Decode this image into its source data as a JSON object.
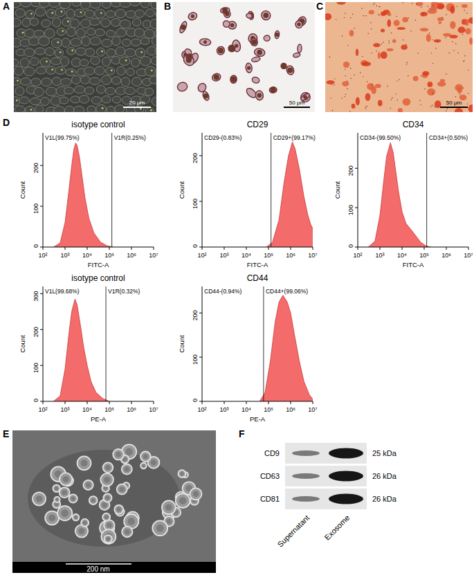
{
  "panels": {
    "labels": [
      "A",
      "B",
      "C",
      "D",
      "E",
      "F"
    ],
    "scale_bars": {
      "A": "20 μm",
      "B": "50 μm",
      "C": "50 μm",
      "E": "200 nm"
    },
    "western_blot": {
      "rows": [
        {
          "name": "CD9",
          "size": "25 kDa"
        },
        {
          "name": "CD63",
          "size": "26 kDa"
        },
        {
          "name": "CD81",
          "size": "26 kDa"
        }
      ],
      "columns": [
        "Supernatant",
        "Exosome"
      ]
    }
  },
  "chart_data": [
    {
      "type": "area",
      "title": "isotype control",
      "x_label": "FITC-A",
      "y_label": "Count",
      "color": "#f46b6b",
      "log": "x",
      "x": [
        300,
        600,
        1000,
        1500,
        2000,
        2500,
        3000,
        3500,
        4500,
        6000,
        8000,
        12000,
        20000,
        40000,
        80000,
        150000
      ],
      "values": [
        0,
        10,
        60,
        140,
        200,
        240,
        255,
        250,
        220,
        170,
        120,
        70,
        35,
        12,
        3,
        0
      ],
      "xlim": [
        100,
        10000000
      ],
      "xticks": [
        {
          "value": 100,
          "label": "10²"
        },
        {
          "value": 1000,
          "label": "10³"
        },
        {
          "value": 10000,
          "label": "10⁴"
        },
        {
          "value": 100000,
          "label": "10⁵"
        },
        {
          "value": 1000000,
          "label": "10⁶"
        },
        {
          "value": 10000000,
          "label": "10⁷"
        }
      ],
      "ylim": [
        0,
        280
      ],
      "yticks": [
        0,
        100,
        200
      ],
      "gate": 130000,
      "annotations": [
        "V1L(99.75%)",
        "V1R(0.25%)"
      ]
    },
    {
      "type": "area",
      "title": "CD29",
      "x_label": "FITC-A",
      "y_label": "Count",
      "color": "#f46b6b",
      "log": "x",
      "x": [
        80000,
        150000,
        300000,
        500000,
        800000,
        1200000,
        1600000,
        2500000,
        4000000,
        6000000,
        8000000,
        10000000
      ],
      "values": [
        0,
        10,
        60,
        140,
        200,
        230,
        215,
        170,
        110,
        70,
        50,
        40
      ],
      "xlim": [
        100,
        10000000
      ],
      "xticks": [
        {
          "value": 100,
          "label": "10²"
        },
        {
          "value": 1000,
          "label": "10³"
        },
        {
          "value": 10000,
          "label": "10⁴"
        },
        {
          "value": 100000,
          "label": "10⁵"
        },
        {
          "value": 1000000,
          "label": "10⁶"
        },
        {
          "value": 10000000,
          "label": "10⁷"
        }
      ],
      "ylim": [
        0,
        250
      ],
      "yticks": [
        0,
        100,
        200
      ],
      "gate": 130000,
      "annotations": [
        "CD29-(0.83%)",
        "CD29+(99.17%)"
      ]
    },
    {
      "type": "area",
      "title": "CD34",
      "x_label": "FITC-A",
      "y_label": "Count",
      "color": "#f46b6b",
      "log": "x",
      "x": [
        300,
        600,
        1000,
        1500,
        2000,
        3000,
        4000,
        5000,
        7000,
        10000,
        15000,
        25000,
        40000,
        70000,
        120000,
        200000
      ],
      "values": [
        0,
        15,
        80,
        170,
        230,
        265,
        240,
        200,
        140,
        90,
        60,
        45,
        30,
        12,
        3,
        0
      ],
      "xlim": [
        100,
        10000000
      ],
      "xticks": [
        {
          "value": 100,
          "label": "10²"
        },
        {
          "value": 1000,
          "label": "10³"
        },
        {
          "value": 10000,
          "label": "10⁴"
        },
        {
          "value": 100000,
          "label": "10⁵"
        },
        {
          "value": 1000000,
          "label": "10⁶"
        },
        {
          "value": 10000000,
          "label": "10⁷"
        }
      ],
      "ylim": [
        0,
        290
      ],
      "yticks": [
        0,
        100,
        200
      ],
      "gate": 130000,
      "annotations": [
        "CD34-(99.50%)",
        "CD34+(0.50%)"
      ]
    },
    {
      "type": "area",
      "title": "isotype control",
      "x_label": "PE-A",
      "y_label": "Count",
      "color": "#f46b6b",
      "log": "x",
      "x": [
        300,
        600,
        1000,
        1500,
        2000,
        2800,
        3500,
        5000,
        7000,
        10000,
        15000,
        25000,
        50000,
        100000
      ],
      "values": [
        0,
        15,
        90,
        190,
        250,
        285,
        270,
        210,
        150,
        100,
        55,
        25,
        8,
        0
      ],
      "xlim": [
        100,
        10000000
      ],
      "xticks": [
        {
          "value": 100,
          "label": "10²"
        },
        {
          "value": 1000,
          "label": "10³"
        },
        {
          "value": 10000,
          "label": "10⁴"
        },
        {
          "value": 100000,
          "label": "10⁵"
        },
        {
          "value": 1000000,
          "label": "10⁶"
        },
        {
          "value": 10000000,
          "label": "10⁷"
        }
      ],
      "ylim": [
        0,
        320
      ],
      "yticks": [
        0,
        100,
        200,
        300
      ],
      "gate": 70000,
      "annotations": [
        "V1L(99.68%)",
        "V1R(0.32%)"
      ]
    },
    {
      "type": "area",
      "title": "CD44",
      "x_label": "PE-A",
      "y_label": "Count",
      "color": "#f46b6b",
      "log": "x",
      "x": [
        40000,
        70000,
        120000,
        200000,
        300000,
        450000,
        700000,
        1000000,
        1500000,
        2500000,
        4000000,
        7000000,
        10000000
      ],
      "values": [
        0,
        20,
        90,
        180,
        225,
        240,
        225,
        200,
        150,
        90,
        45,
        15,
        5
      ],
      "xlim": [
        100,
        10000000
      ],
      "xticks": [
        {
          "value": 100,
          "label": "10²"
        },
        {
          "value": 1000,
          "label": "10³"
        },
        {
          "value": 10000,
          "label": "10⁴"
        },
        {
          "value": 100000,
          "label": "10⁵"
        },
        {
          "value": 1000000,
          "label": "10⁶"
        },
        {
          "value": 10000000,
          "label": "10⁷"
        }
      ],
      "ylim": [
        0,
        260
      ],
      "yticks": [
        0,
        100,
        200
      ],
      "gate": 60000,
      "annotations": [
        "CD44-(0.94%)",
        "CD44+(99.06%)"
      ]
    }
  ]
}
